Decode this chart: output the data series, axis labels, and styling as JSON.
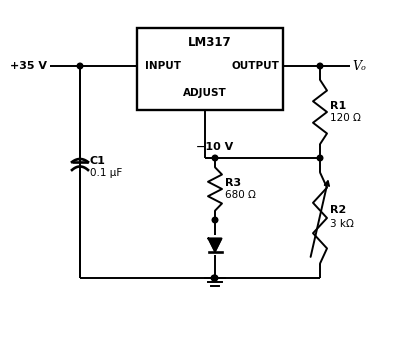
{
  "title": "LM317",
  "input_label": "INPUT",
  "output_label": "OUTPUT",
  "adjust_label": "ADJUST",
  "v_in": "+35 V",
  "v_out": "Vₒ",
  "v_neg": "−10 V",
  "r1_label": "R1",
  "r1_val": "120 Ω",
  "r2_label": "R2",
  "r2_val": "3 kΩ",
  "r3_label": "R3",
  "r3_val": "680 Ω",
  "c1_label": "C1",
  "c1_val": "0.1 μF",
  "line_color": "#000000",
  "bg_color": "#ffffff"
}
